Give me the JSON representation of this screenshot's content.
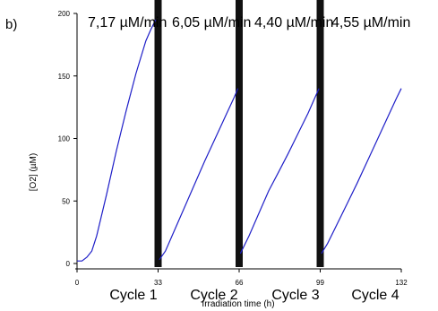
{
  "panel_label": "b)",
  "chart_data": {
    "type": "line",
    "xlabel": "Irradiation time (h)",
    "ylabel": "[O2] (µM)",
    "xlim": [
      0,
      132
    ],
    "ylim": [
      0,
      200
    ],
    "x_ticks": [
      "0",
      "33",
      "66",
      "99",
      "132"
    ],
    "y_ticks": [
      "0",
      "50",
      "100",
      "150",
      "200"
    ],
    "rate_labels": [
      "7,17 µM/min",
      "6,05 µM/min",
      "4,40 µM/min",
      "4,55 µM/min"
    ],
    "cycle_labels": [
      "Cycle 1",
      "Cycle 2",
      "Cycle 3",
      "Cycle 4"
    ],
    "separators_x": [
      33,
      66,
      99
    ],
    "line_color": "#1f1fc8",
    "separator_color": "#111111",
    "series": [
      {
        "x": [
          0,
          2,
          4,
          6,
          8,
          12,
          16,
          20,
          24,
          28,
          30,
          32
        ],
        "y": [
          2,
          2,
          5,
          10,
          22,
          55,
          90,
          122,
          152,
          178,
          187,
          195
        ]
      },
      {
        "x": [
          33.5,
          36,
          40,
          44,
          48,
          52,
          56,
          60,
          64,
          65.5
        ],
        "y": [
          3,
          10,
          28,
          46,
          64,
          82,
          99,
          116,
          133,
          140
        ]
      },
      {
        "x": [
          66.5,
          70,
          74,
          78,
          82,
          86,
          90,
          94,
          98.5
        ],
        "y": [
          8,
          22,
          40,
          58,
          73,
          88,
          104,
          120,
          140
        ]
      },
      {
        "x": [
          99.5,
          102,
          106,
          110,
          114,
          118,
          122,
          126,
          130,
          132
        ],
        "y": [
          8,
          16,
          32,
          48,
          64,
          81,
          98,
          115,
          132,
          140
        ]
      }
    ]
  }
}
